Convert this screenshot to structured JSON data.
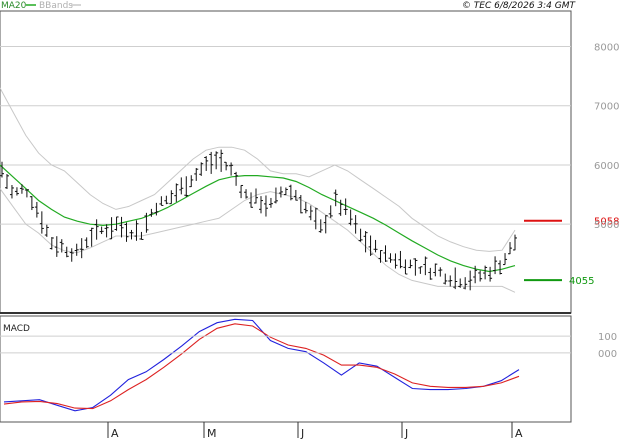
{
  "header": {
    "legend_ma": "MA20",
    "legend_bbands": "BBands",
    "copyright": "© TEC 6/8/2026 3:4 GMT"
  },
  "macd_panel": {
    "label": "MACD"
  },
  "colors": {
    "background": "#ffffff",
    "grid": "#cfcfcf",
    "price_bars": "#111111",
    "ma20": "#22aa22",
    "bbands": "#c8c8c8",
    "macd": "#2222dd",
    "signal": "#dd2222",
    "resistance": "#dd1111",
    "support": "#119911"
  },
  "chart_data": [
    {
      "type": "line",
      "panel": "price",
      "y_ticks": [
        "8000",
        "7000",
        "6000",
        "5000"
      ],
      "ylim": [
        3500,
        8600
      ],
      "x_ticks": [
        "A",
        "M",
        "J",
        "J",
        "A"
      ],
      "levels": [
        {
          "label": "5058",
          "value": 5058,
          "kind": "resistance"
        },
        {
          "label": "4055",
          "value": 4055,
          "kind": "support"
        }
      ],
      "series": [
        {
          "name": "MA20",
          "kind": "ma",
          "values": [
            6000,
            5800,
            5600,
            5400,
            5250,
            5120,
            5050,
            5000,
            4980,
            5000,
            5050,
            5100,
            5180,
            5280,
            5400,
            5520,
            5640,
            5750,
            5800,
            5820,
            5820,
            5800,
            5780,
            5720,
            5620,
            5500,
            5400,
            5300,
            5200,
            5100,
            4980,
            4850,
            4720,
            4600,
            4480,
            4380,
            4300,
            4240,
            4200,
            4240,
            4300
          ]
        },
        {
          "name": "BBands upper",
          "kind": "bb",
          "values": [
            7300,
            6900,
            6500,
            6200,
            6000,
            5900,
            5700,
            5500,
            5350,
            5250,
            5300,
            5400,
            5500,
            5700,
            5900,
            6100,
            6250,
            6300,
            6300,
            6250,
            6100,
            5900,
            5850,
            5850,
            5800,
            5900,
            6000,
            5900,
            5750,
            5600,
            5450,
            5300,
            5100,
            4950,
            4800,
            4700,
            4620,
            4560,
            4540,
            4560,
            4900
          ]
        },
        {
          "name": "BBands lower",
          "kind": "bb",
          "values": [
            5600,
            5300,
            5000,
            4850,
            4650,
            4550,
            4520,
            4600,
            4700,
            4800,
            4800,
            4800,
            4850,
            4900,
            4950,
            5000,
            5050,
            5100,
            5250,
            5400,
            5500,
            5550,
            5500,
            5450,
            5350,
            5200,
            5050,
            4900,
            4700,
            4500,
            4300,
            4150,
            4050,
            4000,
            3950,
            3950,
            3950,
            3950,
            3950,
            3950,
            3850
          ]
        },
        {
          "name": "Price",
          "kind": "price",
          "values": [
            6000,
            5500,
            5600,
            5200,
            4700,
            4600,
            4500,
            4800,
            4900,
            5000,
            4900,
            4850,
            5300,
            5400,
            5600,
            5800,
            6000,
            6100,
            5900,
            5500,
            5400,
            5300,
            5600,
            5500,
            5200,
            4900,
            5400,
            5200,
            4800,
            4600,
            4450,
            4400,
            4300,
            4250,
            4200,
            4100,
            4050,
            4100,
            4200,
            4350,
            4700
          ]
        }
      ]
    },
    {
      "type": "line",
      "panel": "macd",
      "y_ticks": [
        "100",
        "000"
      ],
      "ylim": [
        -620,
        330
      ],
      "series": [
        {
          "name": "MACD",
          "kind": "macd",
          "values": [
            -440,
            -430,
            -420,
            -470,
            -520,
            -490,
            -380,
            -240,
            -170,
            -60,
            60,
            190,
            270,
            300,
            290,
            110,
            40,
            10,
            -90,
            -200,
            -90,
            -120,
            -220,
            -320,
            -330,
            -330,
            -320,
            -300,
            -250,
            -150
          ]
        },
        {
          "name": "Signal",
          "kind": "signal",
          "values": [
            -460,
            -440,
            -435,
            -455,
            -495,
            -500,
            -430,
            -330,
            -240,
            -130,
            -10,
            120,
            220,
            260,
            240,
            140,
            70,
            40,
            -20,
            -110,
            -110,
            -130,
            -190,
            -270,
            -300,
            -310,
            -310,
            -300,
            -270,
            -210
          ]
        }
      ]
    }
  ]
}
